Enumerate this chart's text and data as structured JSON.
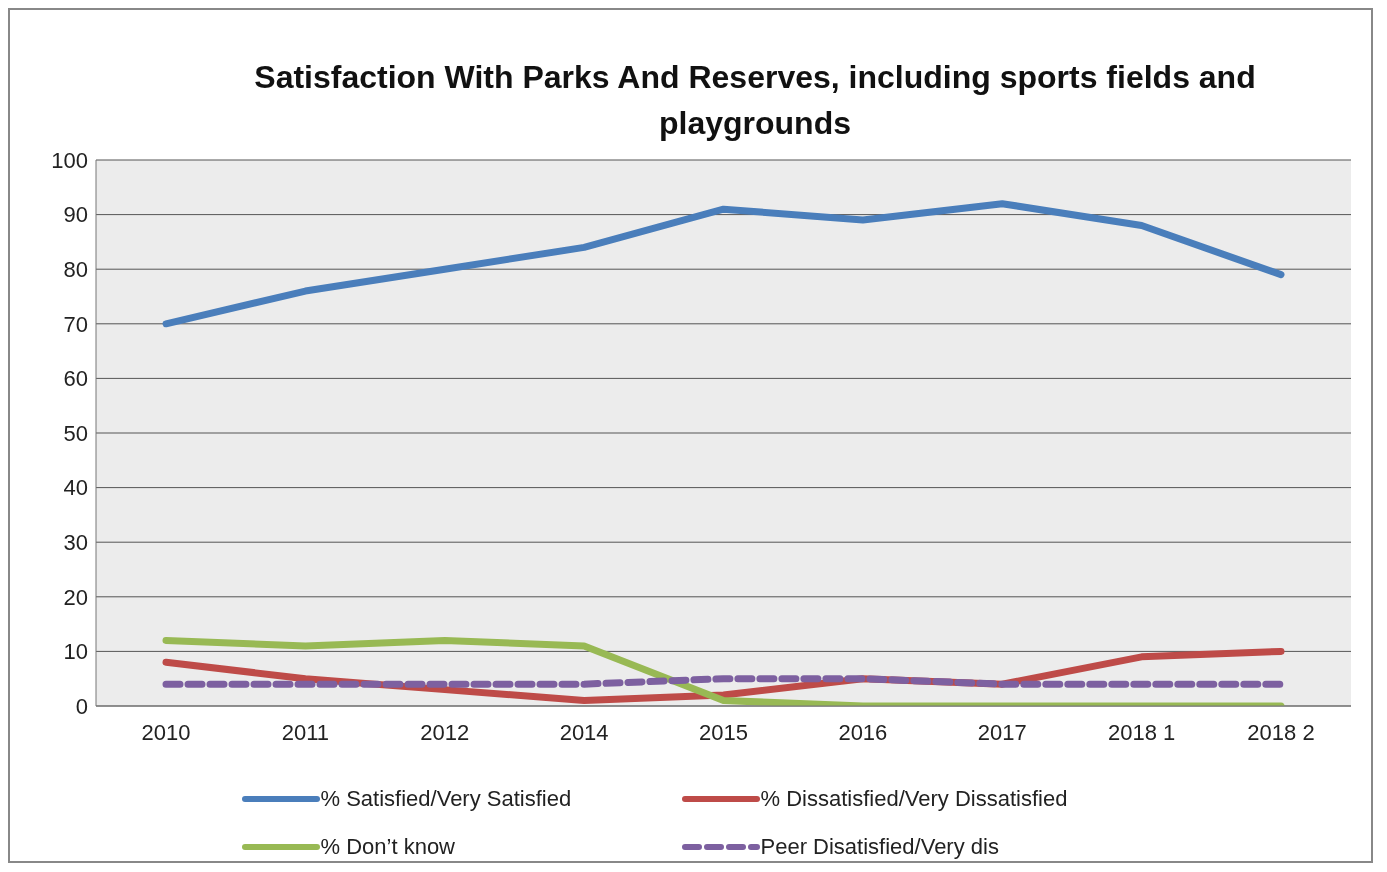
{
  "chart_data": {
    "type": "line",
    "title": "Satisfaction With Parks And Reserves, including sports fields and playgrounds",
    "categories": [
      "2010",
      "2011",
      "2012",
      "2014",
      "2015",
      "2016",
      "2017",
      "2018 1",
      "2018 2"
    ],
    "series": [
      {
        "name": "% Satisfied/Very Satisfied",
        "color": "#4a7ebb",
        "values": [
          70,
          76,
          80,
          84,
          91,
          89,
          92,
          88,
          79
        ]
      },
      {
        "name": "% Dissatisfied/Very Dissatisfied",
        "color": "#be4b48",
        "values": [
          8,
          5,
          3,
          1,
          2,
          5,
          4,
          9,
          10
        ]
      },
      {
        "name": "% Don’t know",
        "color": "#98b954",
        "values": [
          12,
          11,
          12,
          11,
          1,
          0,
          0,
          0,
          0
        ]
      },
      {
        "name": "Peer Disatisfied/Very dis",
        "color": "#7d60a0",
        "values": [
          4,
          4,
          4,
          4,
          5,
          5,
          4,
          4,
          4
        ],
        "line_style": "dashed"
      }
    ],
    "ylim": [
      0,
      100
    ],
    "yticks": [
      0,
      10,
      20,
      30,
      40,
      50,
      60,
      70,
      80,
      90,
      100
    ],
    "grid": "y",
    "legend": "bottom",
    "marker": "none"
  }
}
